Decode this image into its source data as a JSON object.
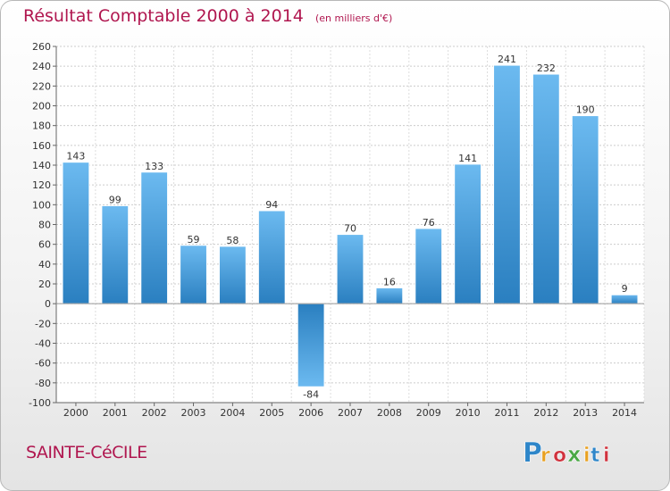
{
  "header": {
    "title": "Résultat Comptable 2000 à 2014",
    "subtitle": "(en milliers d'€)"
  },
  "footer": {
    "commune": "SAINTE-CéCILE",
    "logo_letters": [
      "P",
      "r",
      "o",
      "x",
      "i",
      "t",
      "i"
    ],
    "logo_colors": [
      "#2e86c9",
      "#e8a020",
      "#d0323d",
      "#4aa845",
      "#e8a020",
      "#2e86c9",
      "#d0323d"
    ]
  },
  "colors": {
    "accent": "#b0164f",
    "bar_light": "#6cbaf0",
    "bar_dark": "#2a7fc0"
  },
  "chart_data": {
    "type": "bar",
    "title": "Résultat Comptable 2000 à 2014",
    "subtitle": "(en milliers d'€)",
    "categories": [
      "2000",
      "2001",
      "2002",
      "2003",
      "2004",
      "2005",
      "2006",
      "2007",
      "2008",
      "2009",
      "2010",
      "2011",
      "2012",
      "2013",
      "2014"
    ],
    "values": [
      143,
      99,
      133,
      59,
      58,
      94,
      -84,
      70,
      16,
      76,
      141,
      241,
      232,
      190,
      9
    ],
    "value_labels": [
      "143",
      "99",
      "133",
      "59",
      "58",
      "94",
      "-84",
      "70",
      "16",
      "76",
      "141",
      "241",
      "232",
      "190",
      "9"
    ],
    "ylim": [
      -100,
      260
    ],
    "yticks": [
      "-100",
      "-80",
      "-60",
      "-40",
      "-20",
      "0",
      "20",
      "40",
      "60",
      "80",
      "100",
      "120",
      "140",
      "160",
      "180",
      "200",
      "220",
      "240",
      "260"
    ],
    "xlabel": "",
    "ylabel": "",
    "grid": true
  }
}
